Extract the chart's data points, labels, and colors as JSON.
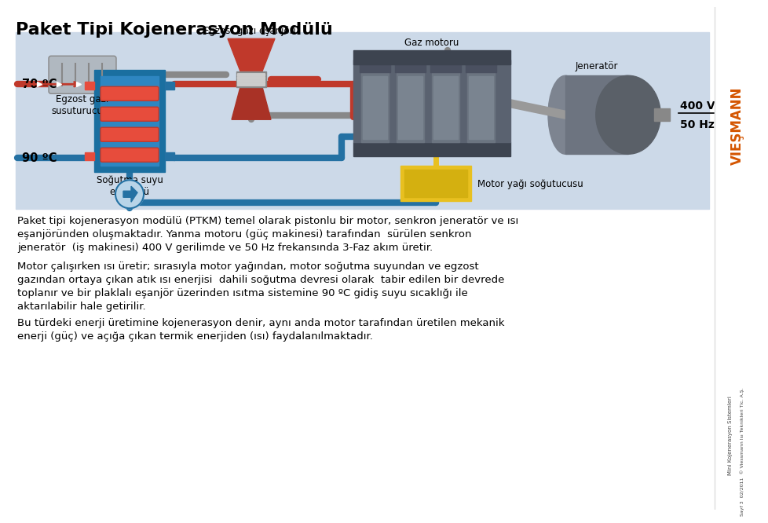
{
  "title": "Paket Tipi Kojenerasyon Modülü",
  "title_fontsize": 16,
  "background_color": "#ffffff",
  "diagram_bg": "#ccd9e8",
  "viessmann_color": "#d45500",
  "paragraph1": "Paket tipi kojenerasyon modülü (PTKM) temel olarak pistonlu bir motor, senkron jeneratör ve ısı\neşanjöründen oluşmaktadır. Yanma motoru (güç makinesi) tarafından  sürülen senkron\njeneratör  (iş makinesi) 400 V gerilimde ve 50 Hz frekansında 3-Faz akım üretir.",
  "paragraph2": "Motor çalışırken ısı üretir; sırasıyla motor yağından, motor soğutma suyundan ve egzost\ngazından ortaya çıkan atık ısı enerjisi  dahili soğutma devresi olarak  tabir edilen bir devrede\ntoplanır ve bir plaklalı eşanjör üzerinden ısıtma sistemine 90 ºC gidiş suyu sıcaklığı ile\naktarılabilir hale getirilir.",
  "paragraph3": "Bu türdeki enerji üretimine kojenerasyon denir, aynı anda motor tarafından üretilen mekanik\nenerji (güç) ve açığa çıkan termik enerjiden (ısı) faydalanılmaktadır.",
  "sidebar_text1": "Mini Kojenerasyon Sistemleri",
  "sidebar_text2": "Sayf 3  02/2011  © Viessmann Isı Teknikleri Tic. A.Ş.",
  "label_egzost_esanjoru": "Egzost gazı eşanjörü",
  "label_gaz_motoru": "Gaz motoru",
  "label_jenerator": "Jeneratör",
  "label_400v": "400 V",
  "label_50hz": "50 Hz",
  "label_egzost_susturucu": "Egzost gazı\nsusuturucusu",
  "label_70c": "70 ºC",
  "label_90c": "90 ºC",
  "label_sogutma": "Soğutma suyu\neşanjörü",
  "label_motor_yagi": "Motor yağı soğutucusu",
  "text_fontsize": 9.5,
  "label_fontsize": 8.5,
  "hot_color": "#c0392b",
  "cold_color": "#2471a3",
  "exhaust_color": "#888888",
  "engine_color": "#5d6470",
  "gen_color": "#7f8c8d"
}
